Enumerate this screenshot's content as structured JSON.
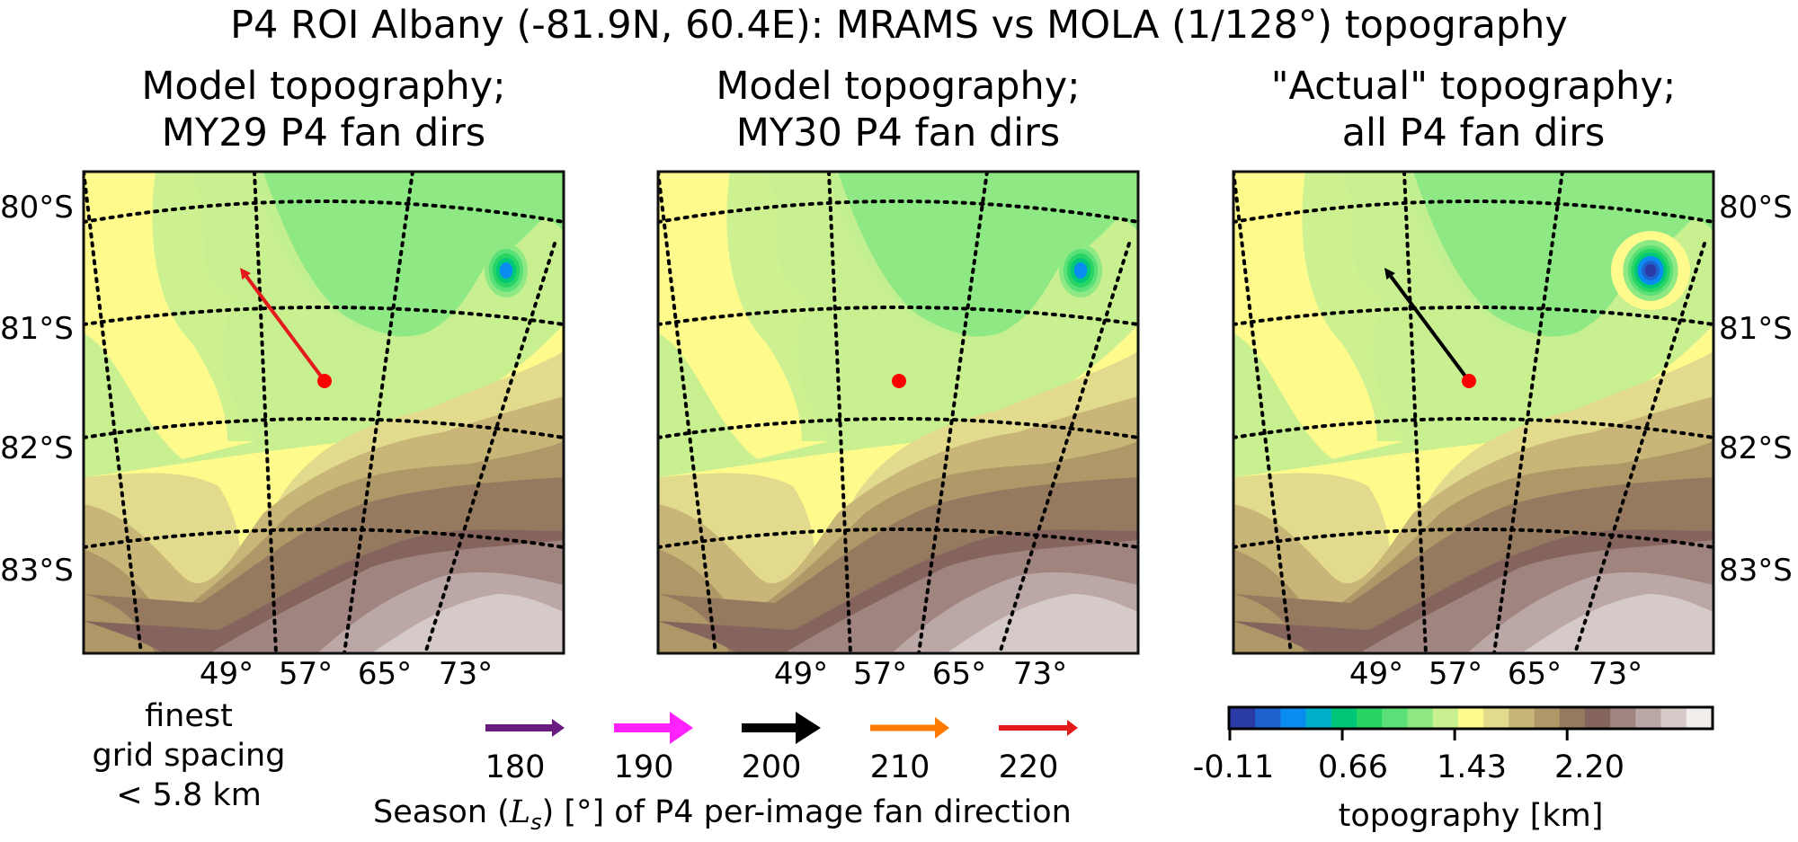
{
  "chart_data": {
    "type": "heatmap",
    "title": "P4 ROI Albany (-81.9N, 60.4E): MRAMS vs MOLA (1/128°) topography",
    "panels": [
      {
        "id": "my29",
        "title_line1": "Model topography;",
        "title_line2": "MY29 P4 fan dirs",
        "source": "MRAMS model",
        "fan_arrows": [
          {
            "ls": 220,
            "color": "#e41a1c",
            "direction": "northwest"
          }
        ],
        "roi_marker": {
          "lat": -81.9,
          "lon": 60.4,
          "color": "#ff0000"
        }
      },
      {
        "id": "my30",
        "title_line1": "Model topography;",
        "title_line2": "MY30 P4 fan dirs",
        "source": "MRAMS model",
        "fan_arrows": [],
        "roi_marker": {
          "lat": -81.9,
          "lon": 60.4,
          "color": "#ff0000"
        }
      },
      {
        "id": "actual",
        "title_line1": "\"Actual\" topography;",
        "title_line2": "all P4 fan dirs",
        "source": "MOLA 1/128°",
        "fan_arrows": [
          {
            "ls": 200,
            "color": "#000000",
            "direction": "northwest"
          }
        ],
        "roi_marker": {
          "lat": -81.9,
          "lon": 60.4,
          "color": "#ff0000"
        }
      }
    ],
    "lat_ticks": [
      "80°S",
      "81°S",
      "82°S",
      "83°S"
    ],
    "lon_ticks": [
      "49°",
      "57°",
      "65°",
      "73°"
    ],
    "grid": "dotted graticule",
    "legend_arrows": {
      "title_prefix": "Season (",
      "title_symbol": "L",
      "title_subscript": "s",
      "title_suffix": ") [°] of P4 per-image fan direction",
      "entries": [
        {
          "ls": "180",
          "color": "#6a1b7f"
        },
        {
          "ls": "190",
          "color": "#ff22ff"
        },
        {
          "ls": "200",
          "color": "#000000"
        },
        {
          "ls": "210",
          "color": "#ff7a00"
        },
        {
          "ls": "220",
          "color": "#e41a1c"
        }
      ]
    },
    "colorbar": {
      "label": "topography [km]",
      "ticks": [
        "-0.11",
        "0.66",
        "1.43",
        "2.20"
      ],
      "range": [
        -0.11,
        3.19
      ],
      "colors": [
        "#2a3aa6",
        "#1e62d0",
        "#0a8cf0",
        "#00b0c8",
        "#00c878",
        "#28d464",
        "#5ae078",
        "#8ee884",
        "#c8f090",
        "#fffa8c",
        "#e2da8c",
        "#c8b678",
        "#ae9868",
        "#967a60",
        "#86645e",
        "#a08480",
        "#bba8a6",
        "#d6cac8",
        "#f2eeec"
      ]
    },
    "note": {
      "line1": "finest",
      "line2": "grid spacing",
      "line3": "< 5.8 km"
    }
  }
}
